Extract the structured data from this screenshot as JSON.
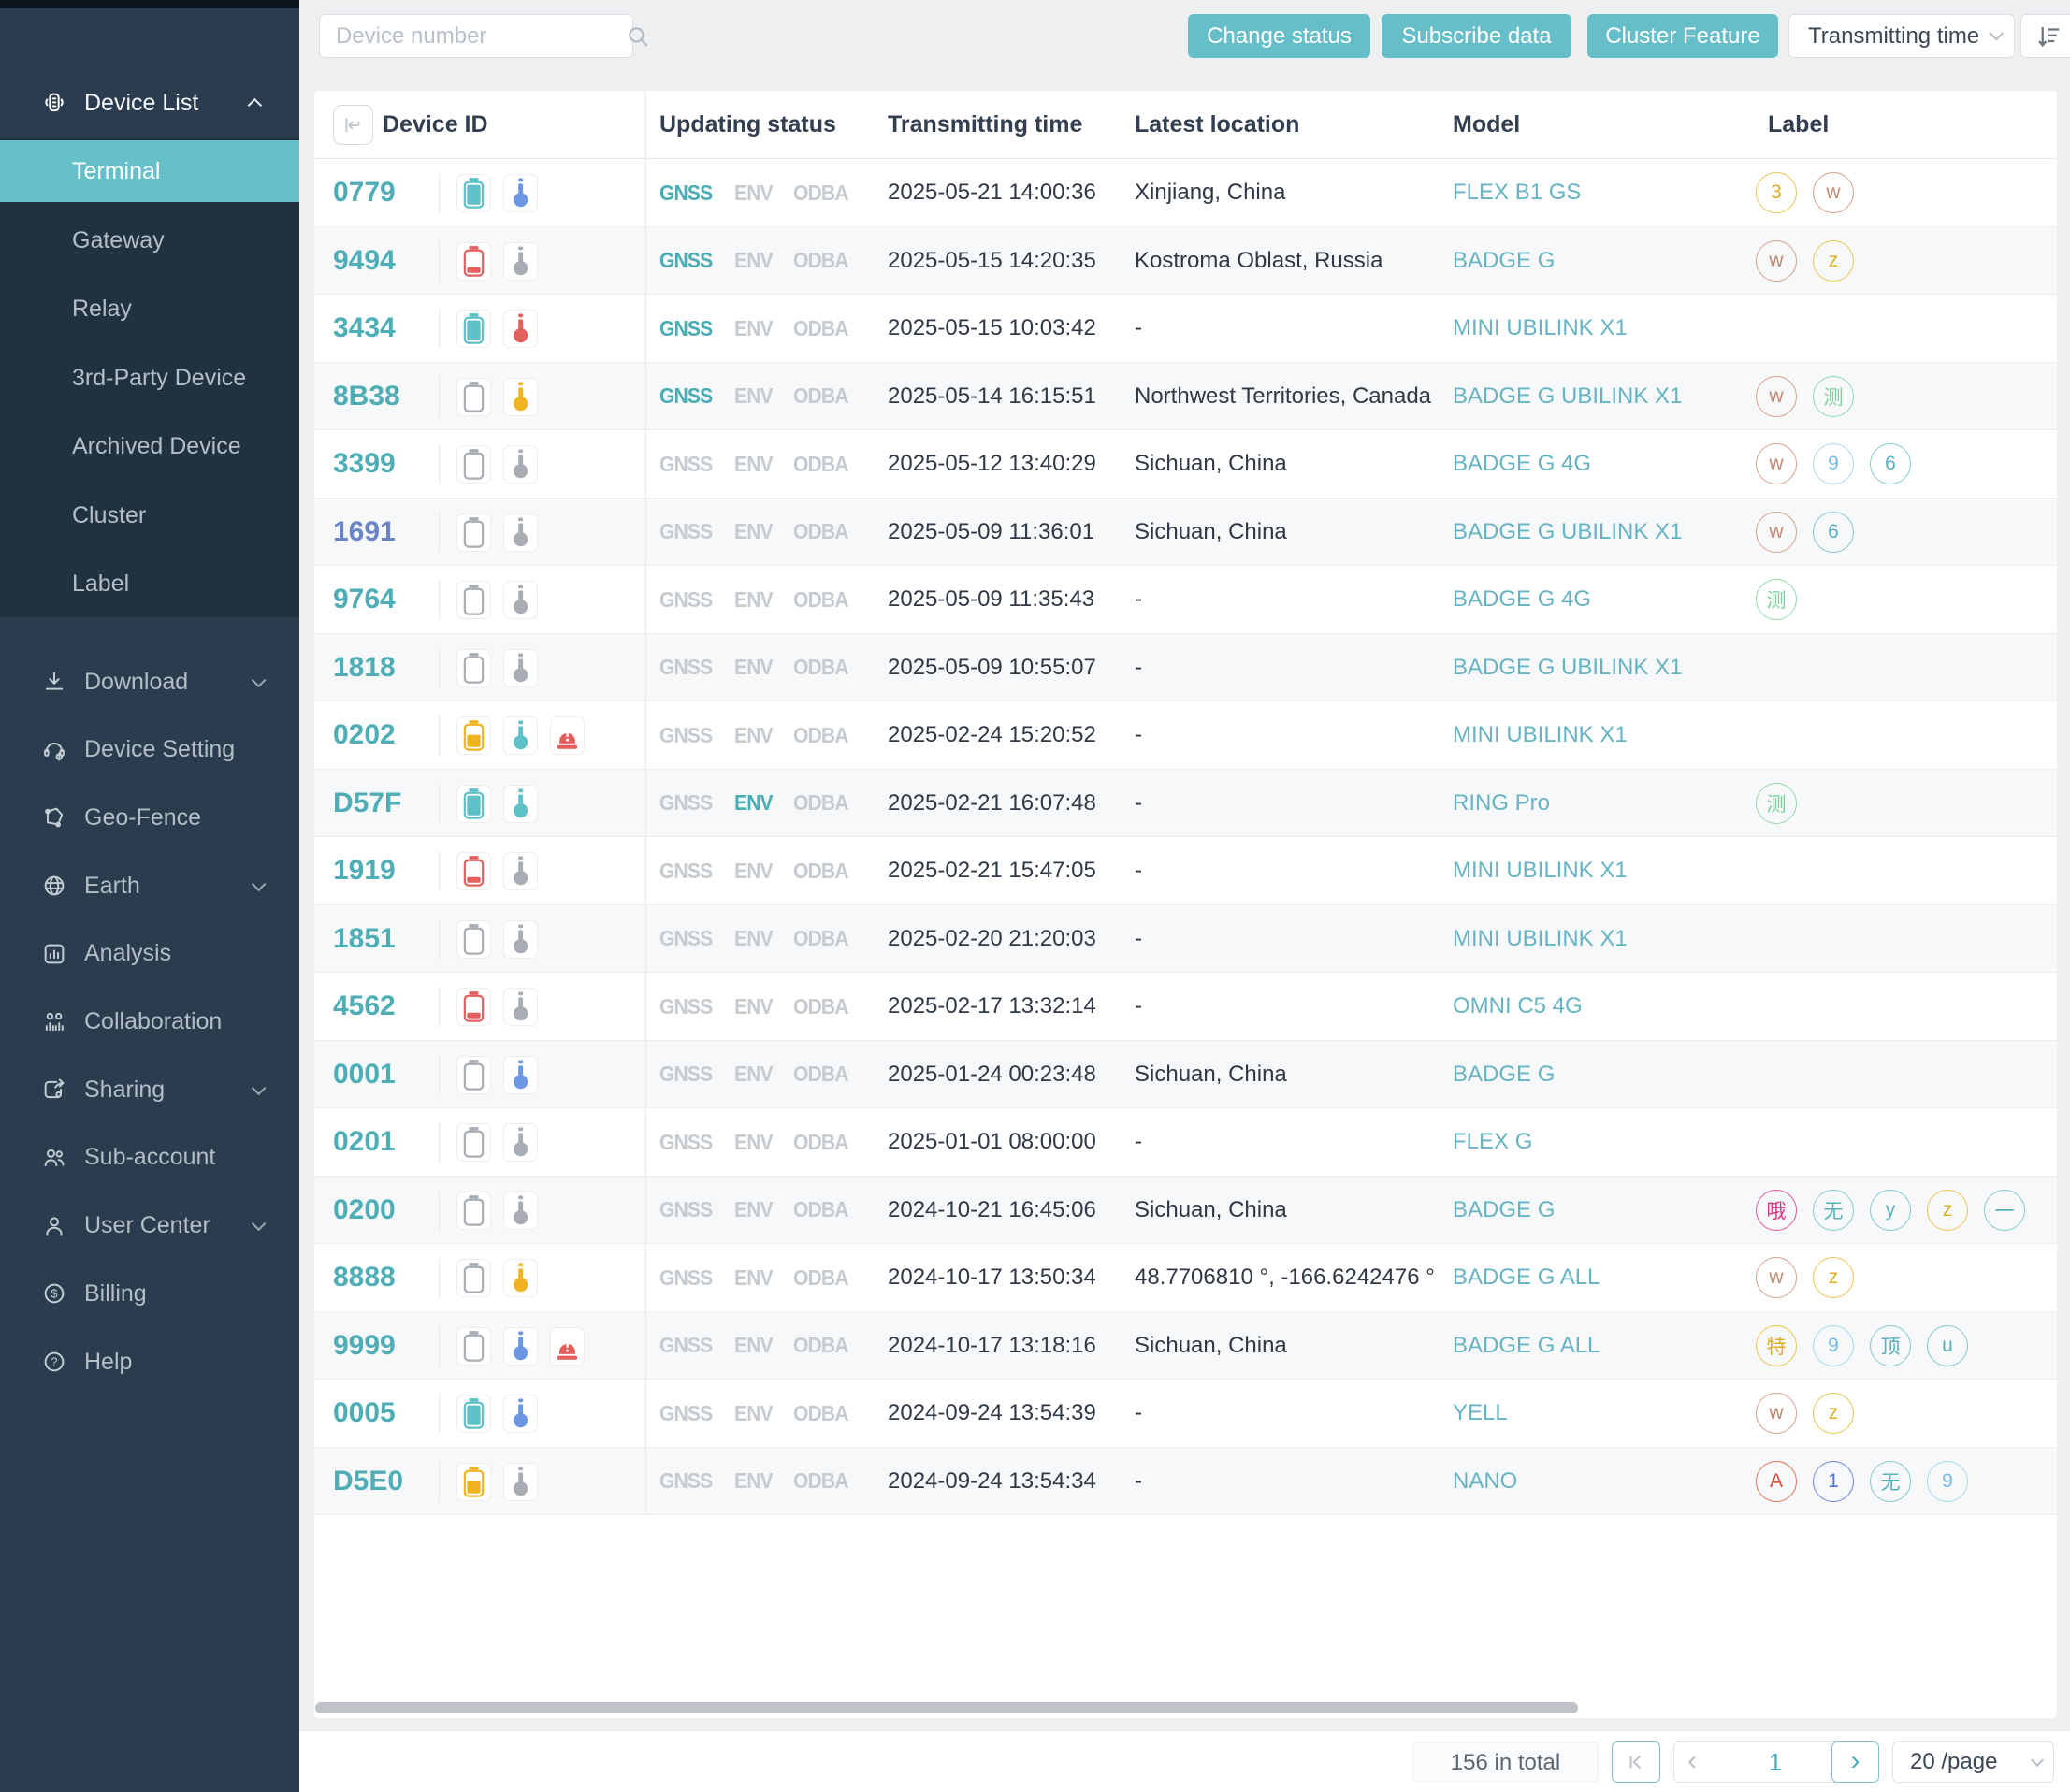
{
  "topbar": {
    "search_placeholder": "Device number",
    "buttons": [
      "Change status",
      "Subscribe data",
      "Cluster Feature"
    ],
    "sort_field": "Transmitting time",
    "accent_color": "#66bec8"
  },
  "sidebar": {
    "group": {
      "label": "Device List",
      "icon": "device-list-icon",
      "expanded": true
    },
    "children": [
      "Terminal",
      "Gateway",
      "Relay",
      "3rd-Party Device",
      "Archived Device",
      "Cluster",
      "Label"
    ],
    "active_child": "Terminal",
    "active_color": "#66c0c9",
    "items": [
      {
        "label": "Download",
        "icon": "download-icon",
        "chevron": "down"
      },
      {
        "label": "Device Setting",
        "icon": "device-setting-icon"
      },
      {
        "label": "Geo-Fence",
        "icon": "geo-fence-icon"
      },
      {
        "label": "Earth",
        "icon": "earth-icon",
        "chevron": "down"
      },
      {
        "label": "Analysis",
        "icon": "analysis-icon"
      },
      {
        "label": "Collaboration",
        "icon": "collaboration-icon"
      },
      {
        "label": "Sharing",
        "icon": "sharing-icon",
        "chevron": "down"
      },
      {
        "label": "Sub-account",
        "icon": "sub-account-icon"
      },
      {
        "label": "User Center",
        "icon": "user-center-icon",
        "chevron": "down"
      },
      {
        "label": "Billing",
        "icon": "billing-icon"
      },
      {
        "label": "Help",
        "icon": "help-icon"
      }
    ]
  },
  "table": {
    "columns": [
      "Device ID",
      "Updating status",
      "Transmitting time",
      "Latest location",
      "Model",
      "Label"
    ],
    "status_tags": [
      "GNSS",
      "ENV",
      "ODBA"
    ],
    "status_colors": {
      "active": "#4aadb3",
      "inactive": "#c6cbd0"
    },
    "icon_colors": {
      "teal": "#5fc0c8",
      "red": "#e3605e",
      "yellow": "#f0b322",
      "gray": "#a7adb3",
      "blue": "#6d96e3"
    },
    "badge_palette": {
      "yellow": {
        "border": "#eac54f",
        "text": "#dfae27"
      },
      "brown": {
        "border": "#d3a08e",
        "text": "#c08b72"
      },
      "green": {
        "border": "#93d8a9",
        "text": "#7ccf99"
      },
      "lightblue": {
        "border": "#a9d7ef",
        "text": "#74bce4"
      },
      "teal": {
        "border": "#84c8ce",
        "text": "#57b0ba"
      },
      "magenta": {
        "border": "#e1569c",
        "text": "#d63384"
      },
      "red": {
        "border": "#df7054",
        "text": "#d9533d"
      },
      "blue": {
        "border": "#6a86d8",
        "text": "#4f6fd2"
      }
    },
    "rows": [
      {
        "id": "0779",
        "battery": "teal",
        "therm": "blue",
        "alarm": false,
        "active": [
          "GNSS"
        ],
        "time": "2025-05-21 14:00:36",
        "location": "Xinjiang, China",
        "model": "FLEX B1 GS",
        "labels": [
          {
            "t": "3",
            "c": "yellow"
          },
          {
            "t": "w",
            "c": "brown"
          }
        ]
      },
      {
        "id": "9494",
        "battery": "red",
        "therm": "gray",
        "alarm": false,
        "active": [
          "GNSS"
        ],
        "time": "2025-05-15 14:20:35",
        "location": "Kostroma Oblast, Russia",
        "model": "BADGE G",
        "labels": [
          {
            "t": "w",
            "c": "brown"
          },
          {
            "t": "z",
            "c": "yellow"
          }
        ]
      },
      {
        "id": "3434",
        "battery": "teal",
        "therm": "red",
        "alarm": false,
        "active": [
          "GNSS"
        ],
        "time": "2025-05-15 10:03:42",
        "location": "-",
        "model": "MINI UBILINK X1",
        "labels": []
      },
      {
        "id": "8B38",
        "battery": "gray",
        "therm": "yellow",
        "alarm": false,
        "active": [
          "GNSS"
        ],
        "time": "2025-05-14 16:15:51",
        "location": "Northwest Territories, Canada",
        "model": "BADGE G UBILINK X1",
        "labels": [
          {
            "t": "w",
            "c": "brown"
          },
          {
            "t": "测",
            "c": "green"
          }
        ]
      },
      {
        "id": "3399",
        "battery": "gray",
        "therm": "gray",
        "alarm": false,
        "active": [],
        "time": "2025-05-12 13:40:29",
        "location": "Sichuan, China",
        "model": "BADGE G 4G",
        "labels": [
          {
            "t": "w",
            "c": "brown"
          },
          {
            "t": "9",
            "c": "lightblue"
          },
          {
            "t": "6",
            "c": "teal"
          }
        ]
      },
      {
        "id": "1691",
        "id_variant": "visited",
        "battery": "gray",
        "therm": "gray",
        "alarm": false,
        "active": [],
        "time": "2025-05-09 11:36:01",
        "location": "Sichuan, China",
        "model": "BADGE G UBILINK X1",
        "labels": [
          {
            "t": "w",
            "c": "brown"
          },
          {
            "t": "6",
            "c": "teal"
          }
        ]
      },
      {
        "id": "9764",
        "battery": "gray",
        "therm": "gray",
        "alarm": false,
        "active": [],
        "time": "2025-05-09 11:35:43",
        "location": "-",
        "model": "BADGE G 4G",
        "labels": [
          {
            "t": "测",
            "c": "green"
          }
        ]
      },
      {
        "id": "1818",
        "battery": "gray",
        "therm": "gray",
        "alarm": false,
        "active": [],
        "time": "2025-05-09 10:55:07",
        "location": "-",
        "model": "BADGE G UBILINK X1",
        "labels": []
      },
      {
        "id": "0202",
        "battery": "yellow",
        "therm": "teal",
        "alarm": true,
        "active": [],
        "time": "2025-02-24 15:20:52",
        "location": "-",
        "model": "MINI UBILINK X1",
        "labels": []
      },
      {
        "id": "D57F",
        "battery": "teal",
        "therm": "teal",
        "alarm": false,
        "active": [
          "ENV"
        ],
        "time": "2025-02-21 16:07:48",
        "location": "-",
        "model": "RING Pro",
        "labels": [
          {
            "t": "测",
            "c": "green"
          }
        ]
      },
      {
        "id": "1919",
        "battery": "red",
        "therm": "gray",
        "alarm": false,
        "active": [],
        "time": "2025-02-21 15:47:05",
        "location": "-",
        "model": "MINI UBILINK X1",
        "labels": []
      },
      {
        "id": "1851",
        "battery": "gray",
        "therm": "gray",
        "alarm": false,
        "active": [],
        "time": "2025-02-20 21:20:03",
        "location": "-",
        "model": "MINI UBILINK X1",
        "labels": []
      },
      {
        "id": "4562",
        "battery": "red",
        "therm": "gray",
        "alarm": false,
        "active": [],
        "time": "2025-02-17 13:32:14",
        "location": "-",
        "model": "OMNI C5 4G",
        "labels": []
      },
      {
        "id": "0001",
        "battery": "gray",
        "therm": "blue",
        "alarm": false,
        "active": [],
        "time": "2025-01-24 00:23:48",
        "location": "Sichuan, China",
        "model": "BADGE G",
        "labels": []
      },
      {
        "id": "0201",
        "battery": "gray",
        "therm": "gray",
        "alarm": false,
        "active": [],
        "time": "2025-01-01 08:00:00",
        "location": "-",
        "model": "FLEX G",
        "labels": []
      },
      {
        "id": "0200",
        "battery": "gray",
        "therm": "gray",
        "alarm": false,
        "active": [],
        "time": "2024-10-21 16:45:06",
        "location": "Sichuan, China",
        "model": "BADGE G",
        "labels": [
          {
            "t": "哦",
            "c": "magenta"
          },
          {
            "t": "无",
            "c": "teal"
          },
          {
            "t": "y",
            "c": "teal"
          },
          {
            "t": "z",
            "c": "yellow"
          },
          {
            "t": "一",
            "c": "teal"
          }
        ]
      },
      {
        "id": "8888",
        "battery": "gray",
        "therm": "yellow",
        "alarm": false,
        "active": [],
        "time": "2024-10-17 13:50:34",
        "location": "48.7706810 °, -166.6242476 °",
        "model": "BADGE G ALL",
        "labels": [
          {
            "t": "w",
            "c": "brown"
          },
          {
            "t": "z",
            "c": "yellow"
          }
        ]
      },
      {
        "id": "9999",
        "battery": "gray",
        "therm": "blue",
        "alarm": true,
        "active": [],
        "time": "2024-10-17 13:18:16",
        "location": "Sichuan, China",
        "model": "BADGE G ALL",
        "labels": [
          {
            "t": "特",
            "c": "yellow"
          },
          {
            "t": "9",
            "c": "lightblue"
          },
          {
            "t": "顶",
            "c": "teal"
          },
          {
            "t": "u",
            "c": "teal"
          }
        ]
      },
      {
        "id": "0005",
        "battery": "teal",
        "therm": "blue",
        "alarm": false,
        "active": [],
        "time": "2024-09-24 13:54:39",
        "location": "-",
        "model": "YELL",
        "labels": [
          {
            "t": "w",
            "c": "brown"
          },
          {
            "t": "z",
            "c": "yellow"
          }
        ]
      },
      {
        "id": "D5E0",
        "battery": "yellow",
        "therm": "gray",
        "alarm": false,
        "active": [],
        "time": "2024-09-24 13:54:34",
        "location": "-",
        "model": "NANO",
        "labels": [
          {
            "t": "A",
            "c": "red"
          },
          {
            "t": "1",
            "c": "blue"
          },
          {
            "t": "无",
            "c": "teal"
          },
          {
            "t": "9",
            "c": "lightblue"
          }
        ]
      }
    ]
  },
  "footer": {
    "total_text": "156 in total",
    "page": "1",
    "page_size": "20 /page"
  }
}
